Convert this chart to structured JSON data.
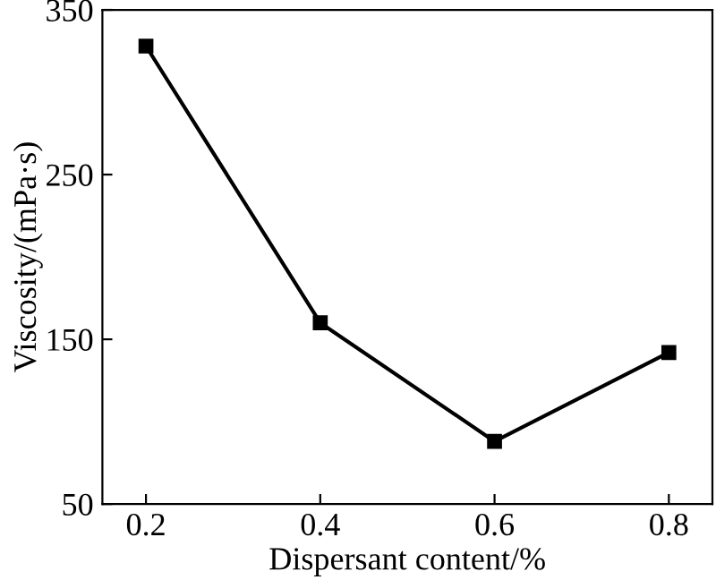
{
  "chart_data": {
    "type": "line",
    "xlabel": "Dispersant content/%",
    "ylabel": "Viscosity/(mPa·s)",
    "x": [
      0.2,
      0.4,
      0.6,
      0.8
    ],
    "series": [
      {
        "color": "#000000",
        "values": [
          328,
          160,
          88,
          142
        ]
      }
    ],
    "xlim": [
      0.15,
      0.85
    ],
    "xticks": [
      0.2,
      0.4,
      0.6,
      0.8
    ],
    "ylim": [
      50,
      350
    ],
    "yticks": [
      50,
      150,
      250,
      350
    ],
    "marker": "square",
    "line_style": "solid",
    "grid": false,
    "legend": false
  }
}
